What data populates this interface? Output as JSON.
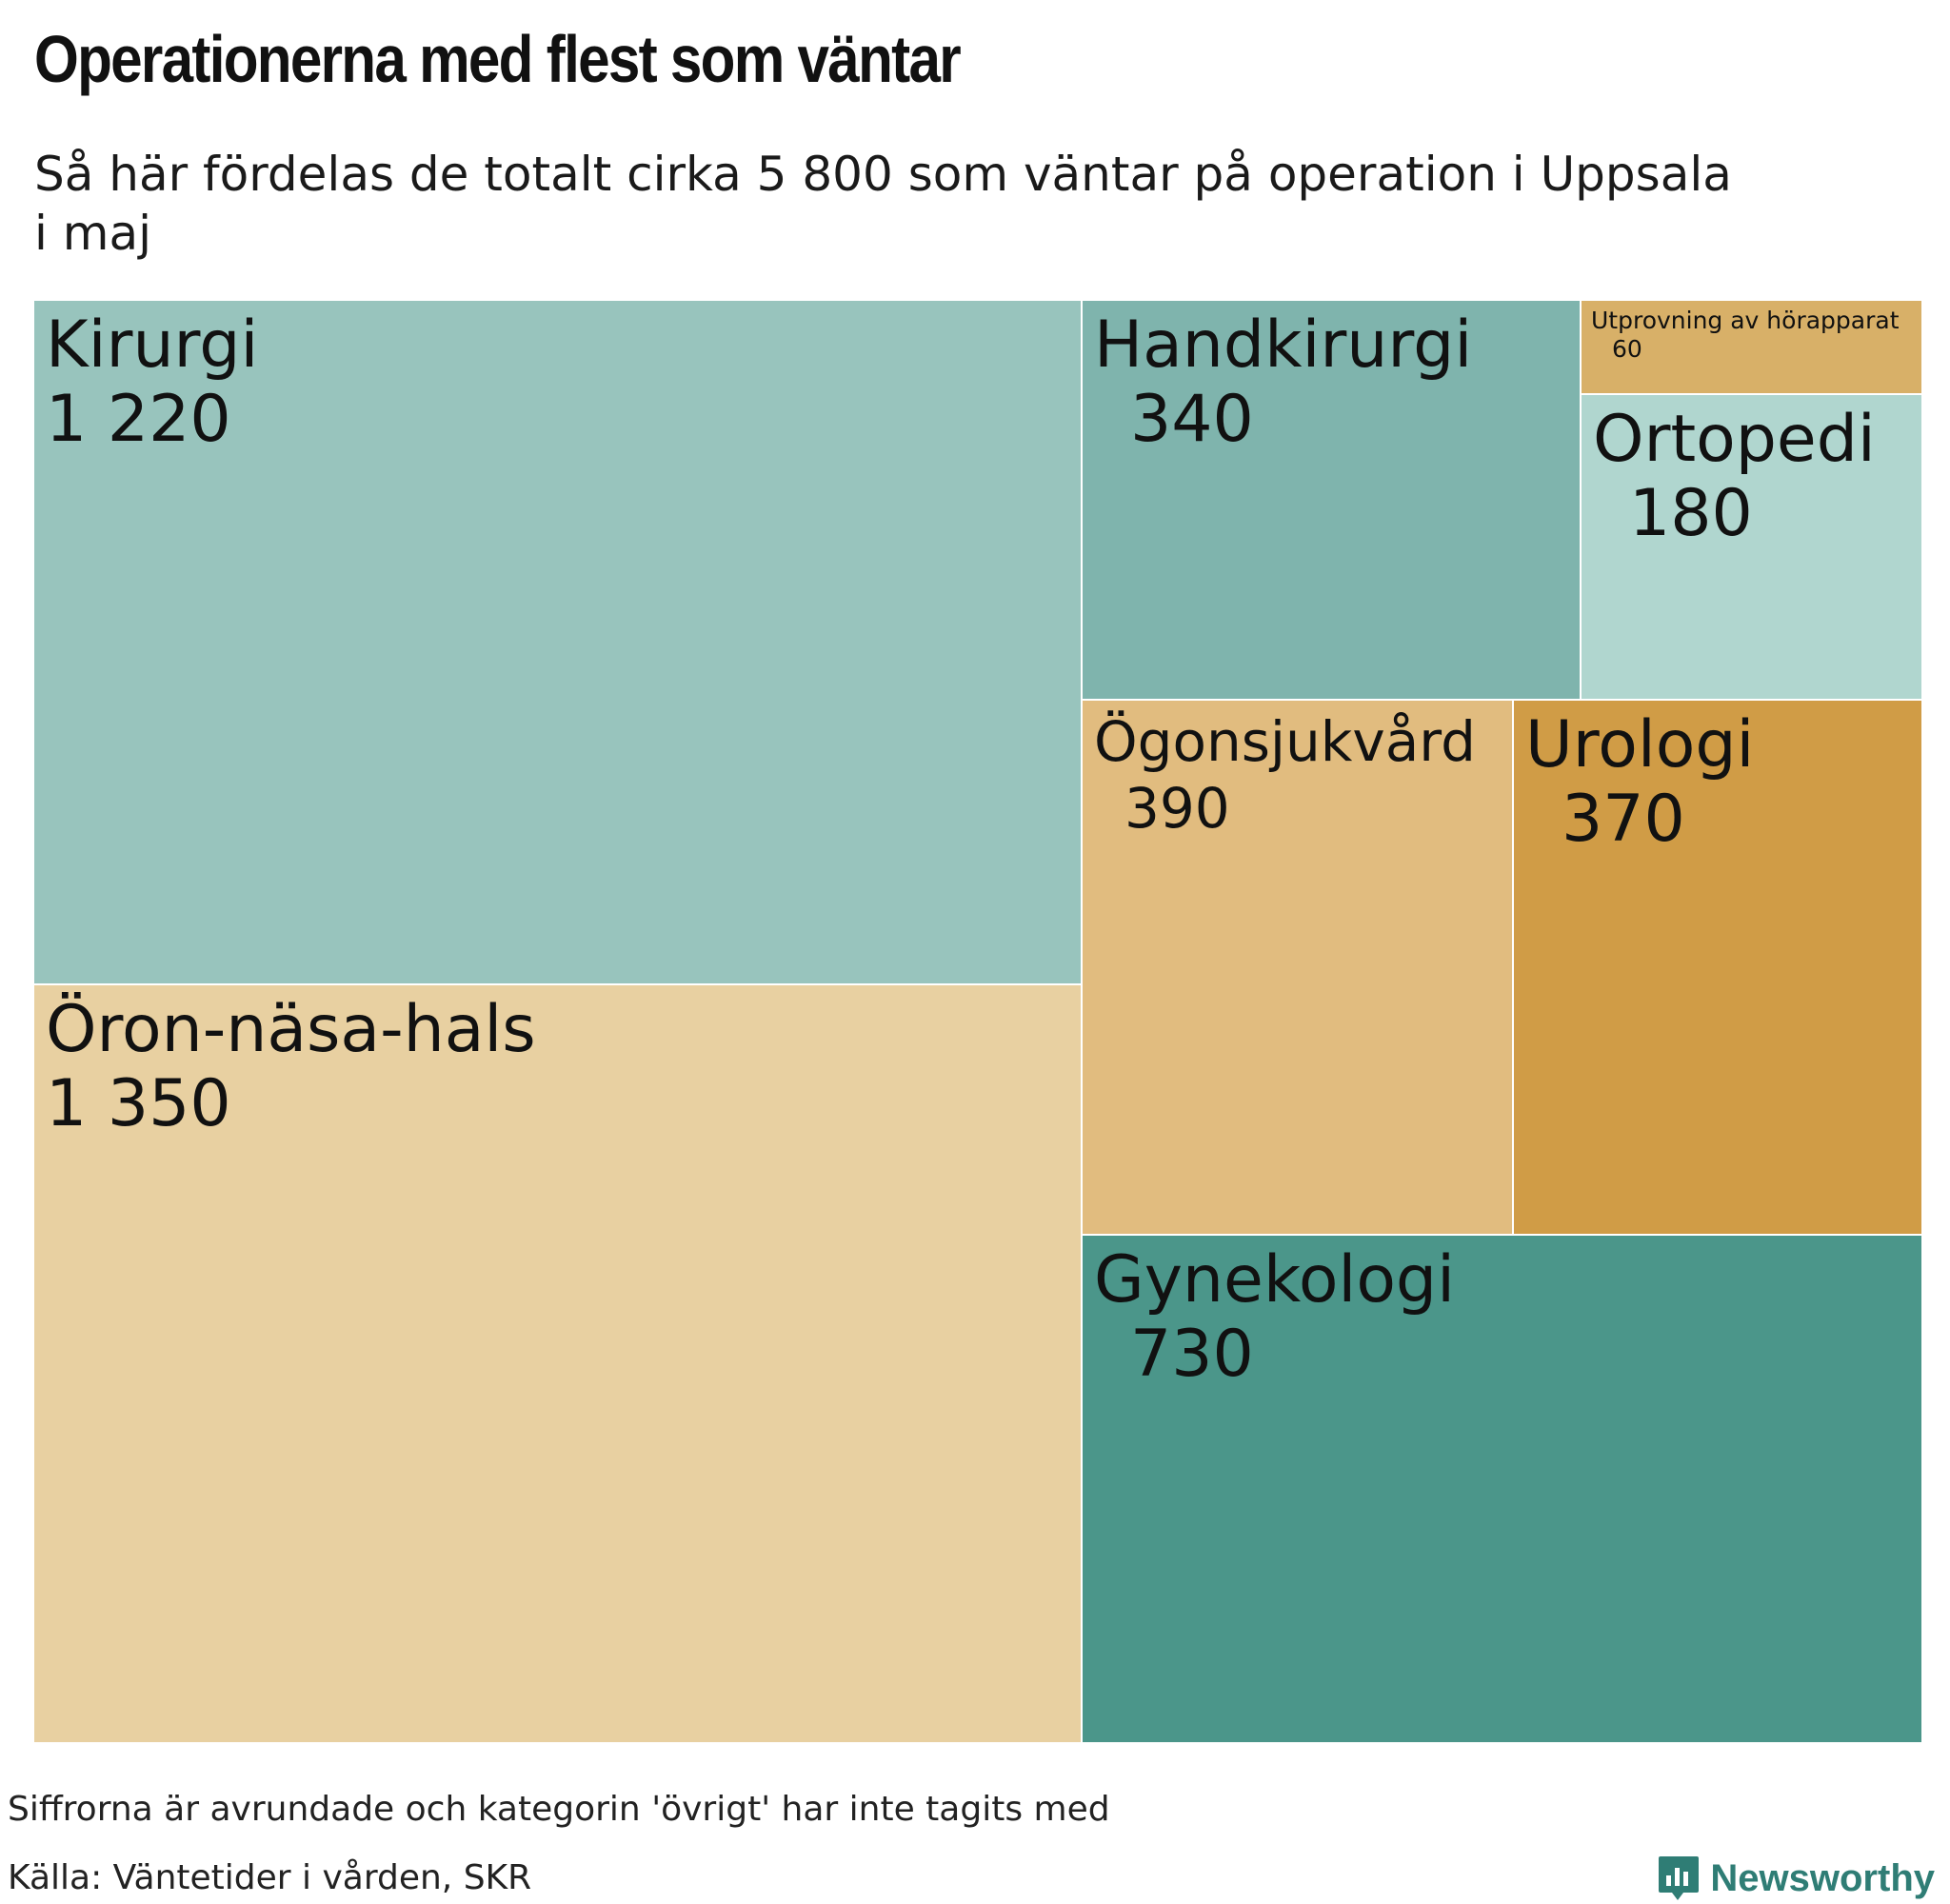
{
  "title": "Operationerna med flest som väntar",
  "subtitle": "Så här fördelas de totalt cirka 5 800 som väntar på operation i Uppsala i maj",
  "footnote": "Siffrorna är avrundade och kategorin 'övrigt' har inte tagits med",
  "source": "Källa: Väntetider i vården, SKR",
  "brand": {
    "name": "Newsworthy",
    "icon": "newsworthy-logo-icon",
    "color": "#2f7d75"
  },
  "chart_data": {
    "type": "treemap",
    "title": "Operationerna med flest som väntar",
    "items": [
      {
        "name": "Kirurgi",
        "value": 1220,
        "label": "1 220",
        "color": "#98c4bd"
      },
      {
        "name": "Öron-näsa-hals",
        "value": 1350,
        "label": "1 350",
        "color": "#e8d0a1"
      },
      {
        "name": "Handkirurgi",
        "value": 340,
        "label": "340",
        "color": "#7fb4ad"
      },
      {
        "name": "Utprovning av hörapparat",
        "value": 60,
        "label": "60",
        "color": "#d8b068"
      },
      {
        "name": "Ortopedi",
        "value": 180,
        "label": "180",
        "color": "#b0d6cf"
      },
      {
        "name": "Ögonsjukvård",
        "value": 390,
        "label": "390",
        "color": "#e1bc7f"
      },
      {
        "name": "Urologi",
        "value": 370,
        "label": "370",
        "color": "#d09c46"
      },
      {
        "name": "Gynekologi",
        "value": 730,
        "label": "730",
        "color": "#4b968a"
      }
    ]
  }
}
